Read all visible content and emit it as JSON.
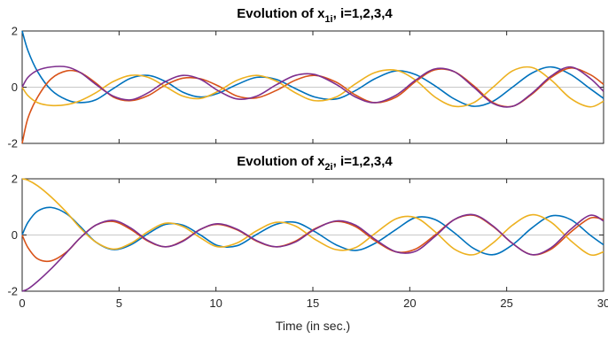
{
  "chart_data": [
    {
      "type": "line",
      "title_main": "Evolution of x",
      "title_sub": "1i",
      "title_tail": ", i=1,2,3,4",
      "xlabel": "",
      "ylabel": "",
      "xlim": [
        0,
        30
      ],
      "ylim": [
        -2,
        2
      ],
      "yticks": [
        -2,
        0,
        2
      ],
      "xticks": [],
      "series": [
        {
          "color": "#0072BD",
          "x": [
            0,
            0.3,
            0.8,
            1.5,
            2.3,
            3.0,
            3.8,
            4.7,
            5.6,
            6.5,
            7.4,
            8.3,
            9.2,
            10.1,
            11.1,
            12.1,
            13.1,
            14.1,
            15.1,
            16.2,
            17.2,
            18.2,
            19.3,
            20.3,
            21.3,
            22.3,
            23.3,
            24.3,
            25.3,
            26.3,
            27.3,
            28.3,
            29.3,
            30
          ],
          "y": [
            2.0,
            1.3,
            0.55,
            -0.1,
            -0.45,
            -0.55,
            -0.45,
            -0.05,
            0.32,
            0.42,
            0.2,
            -0.18,
            -0.35,
            -0.22,
            0.1,
            0.35,
            0.28,
            -0.05,
            -0.35,
            -0.42,
            -0.12,
            0.3,
            0.58,
            0.45,
            0.05,
            -0.42,
            -0.68,
            -0.5,
            0.0,
            0.5,
            0.72,
            0.45,
            -0.05,
            -0.4
          ]
        },
        {
          "color": "#D95319",
          "x": [
            0,
            0.3,
            0.8,
            1.5,
            2.3,
            3.0,
            3.8,
            4.7,
            5.6,
            6.5,
            7.4,
            8.3,
            9.2,
            10.1,
            11.1,
            12.1,
            13.1,
            14.1,
            15.1,
            16.2,
            17.2,
            18.2,
            19.3,
            20.3,
            21.3,
            22.3,
            23.3,
            24.3,
            25.3,
            26.3,
            27.3,
            28.3,
            29.3,
            30
          ],
          "y": [
            -2.0,
            -1.1,
            -0.35,
            0.3,
            0.58,
            0.52,
            0.15,
            -0.35,
            -0.48,
            -0.3,
            0.08,
            0.32,
            0.3,
            0.05,
            -0.32,
            -0.38,
            -0.12,
            0.25,
            0.42,
            0.18,
            -0.28,
            -0.55,
            -0.35,
            0.2,
            0.62,
            0.55,
            0.05,
            -0.55,
            -0.68,
            -0.25,
            0.35,
            0.68,
            0.45,
            0.1
          ]
        },
        {
          "color": "#EDB120",
          "x": [
            0,
            0.3,
            0.8,
            1.5,
            2.3,
            3.0,
            3.8,
            4.7,
            5.6,
            6.5,
            7.4,
            8.3,
            9.2,
            10.1,
            11.1,
            12.1,
            13.1,
            14.1,
            15.1,
            16.2,
            17.2,
            18.2,
            19.3,
            20.3,
            21.3,
            22.3,
            23.3,
            24.3,
            25.3,
            26.3,
            27.3,
            28.3,
            29.3,
            30
          ],
          "y": [
            0.0,
            -0.3,
            -0.55,
            -0.65,
            -0.62,
            -0.48,
            -0.2,
            0.2,
            0.42,
            0.35,
            0.02,
            -0.32,
            -0.4,
            -0.15,
            0.25,
            0.42,
            0.22,
            -0.2,
            -0.48,
            -0.35,
            0.12,
            0.52,
            0.6,
            0.25,
            -0.35,
            -0.68,
            -0.55,
            0.0,
            0.58,
            0.7,
            0.25,
            -0.4,
            -0.7,
            -0.5
          ]
        },
        {
          "color": "#7E2F8E",
          "x": [
            0,
            0.3,
            0.8,
            1.5,
            2.3,
            3.0,
            3.8,
            4.7,
            5.6,
            6.5,
            7.4,
            8.3,
            9.2,
            10.1,
            11.1,
            12.1,
            13.1,
            14.1,
            15.1,
            16.2,
            17.2,
            18.2,
            19.3,
            20.3,
            21.3,
            22.3,
            23.3,
            24.3,
            25.3,
            26.3,
            27.3,
            28.3,
            29.3,
            30
          ],
          "y": [
            0.0,
            0.35,
            0.6,
            0.72,
            0.72,
            0.52,
            0.1,
            -0.32,
            -0.45,
            -0.2,
            0.2,
            0.42,
            0.28,
            -0.12,
            -0.42,
            -0.32,
            0.08,
            0.42,
            0.45,
            0.1,
            -0.35,
            -0.55,
            -0.28,
            0.25,
            0.65,
            0.55,
            0.0,
            -0.58,
            -0.68,
            -0.22,
            0.4,
            0.72,
            0.32,
            -0.15
          ]
        }
      ]
    },
    {
      "type": "line",
      "title_main": "Evolution of x",
      "title_sub": "2i",
      "title_tail": ", i=1,2,3,4",
      "xlabel": "Time (in sec.)",
      "ylabel": "",
      "xlim": [
        0,
        30
      ],
      "ylim": [
        -2,
        2
      ],
      "yticks": [
        -2,
        0,
        2
      ],
      "xticks": [
        0,
        5,
        10,
        15,
        20,
        25,
        30
      ],
      "series": [
        {
          "color": "#0072BD",
          "x": [
            0,
            0.3,
            0.8,
            1.5,
            2.3,
            3.0,
            3.8,
            4.7,
            5.6,
            6.5,
            7.4,
            8.3,
            9.2,
            10.1,
            11.1,
            12.1,
            13.1,
            14.1,
            15.1,
            16.2,
            17.2,
            18.2,
            19.3,
            20.3,
            21.3,
            22.3,
            23.3,
            24.3,
            25.3,
            26.3,
            27.3,
            28.3,
            29.3,
            30
          ],
          "y": [
            0.0,
            0.45,
            0.85,
            0.98,
            0.75,
            0.3,
            -0.25,
            -0.52,
            -0.35,
            0.05,
            0.38,
            0.35,
            0.0,
            -0.38,
            -0.38,
            0.02,
            0.38,
            0.45,
            0.12,
            -0.35,
            -0.55,
            -0.3,
            0.2,
            0.62,
            0.55,
            0.08,
            -0.48,
            -0.7,
            -0.35,
            0.25,
            0.68,
            0.55,
            0.0,
            -0.35
          ]
        },
        {
          "color": "#D95319",
          "x": [
            0,
            0.3,
            0.8,
            1.5,
            2.3,
            3.0,
            3.8,
            4.7,
            5.6,
            6.5,
            7.4,
            8.3,
            9.2,
            10.1,
            11.1,
            12.1,
            13.1,
            14.1,
            15.1,
            16.2,
            17.2,
            18.2,
            19.3,
            20.3,
            21.3,
            22.3,
            23.3,
            24.3,
            25.3,
            26.3,
            27.3,
            28.3,
            29.3,
            30
          ],
          "y": [
            0.0,
            -0.45,
            -0.85,
            -0.92,
            -0.6,
            -0.1,
            0.35,
            0.48,
            0.2,
            -0.22,
            -0.42,
            -0.2,
            0.2,
            0.38,
            0.18,
            -0.22,
            -0.42,
            -0.22,
            0.22,
            0.48,
            0.3,
            -0.2,
            -0.6,
            -0.5,
            0.0,
            0.55,
            0.7,
            0.3,
            -0.3,
            -0.7,
            -0.5,
            0.1,
            0.6,
            0.55
          ]
        },
        {
          "color": "#EDB120",
          "x": [
            0,
            0.3,
            0.8,
            1.5,
            2.3,
            3.0,
            3.8,
            4.7,
            5.6,
            6.5,
            7.4,
            8.3,
            9.2,
            10.1,
            11.1,
            12.1,
            13.1,
            14.1,
            15.1,
            16.2,
            17.2,
            18.2,
            19.3,
            20.3,
            21.3,
            22.3,
            23.3,
            24.3,
            25.3,
            26.3,
            27.3,
            28.3,
            29.3,
            30
          ],
          "y": [
            2.0,
            1.95,
            1.75,
            1.35,
            0.8,
            0.25,
            -0.25,
            -0.5,
            -0.3,
            0.12,
            0.42,
            0.3,
            -0.1,
            -0.42,
            -0.28,
            0.15,
            0.45,
            0.32,
            -0.15,
            -0.52,
            -0.45,
            0.05,
            0.58,
            0.62,
            0.12,
            -0.5,
            -0.7,
            -0.28,
            0.35,
            0.72,
            0.45,
            -0.2,
            -0.7,
            -0.6
          ]
        },
        {
          "color": "#7E2F8E",
          "x": [
            0,
            0.3,
            0.8,
            1.5,
            2.3,
            3.0,
            3.8,
            4.7,
            5.6,
            6.5,
            7.4,
            8.3,
            9.2,
            10.1,
            11.1,
            12.1,
            13.1,
            14.1,
            15.1,
            16.2,
            17.2,
            18.2,
            19.3,
            20.3,
            21.3,
            22.3,
            23.3,
            24.3,
            25.3,
            26.3,
            27.3,
            28.3,
            29.3,
            30
          ],
          "y": [
            -2.0,
            -1.92,
            -1.65,
            -1.2,
            -0.62,
            -0.1,
            0.35,
            0.52,
            0.25,
            -0.2,
            -0.42,
            -0.22,
            0.2,
            0.4,
            0.2,
            -0.2,
            -0.42,
            -0.25,
            0.2,
            0.5,
            0.35,
            -0.15,
            -0.6,
            -0.58,
            -0.05,
            0.55,
            0.72,
            0.32,
            -0.3,
            -0.7,
            -0.45,
            0.2,
            0.7,
            0.5
          ]
        }
      ]
    }
  ]
}
